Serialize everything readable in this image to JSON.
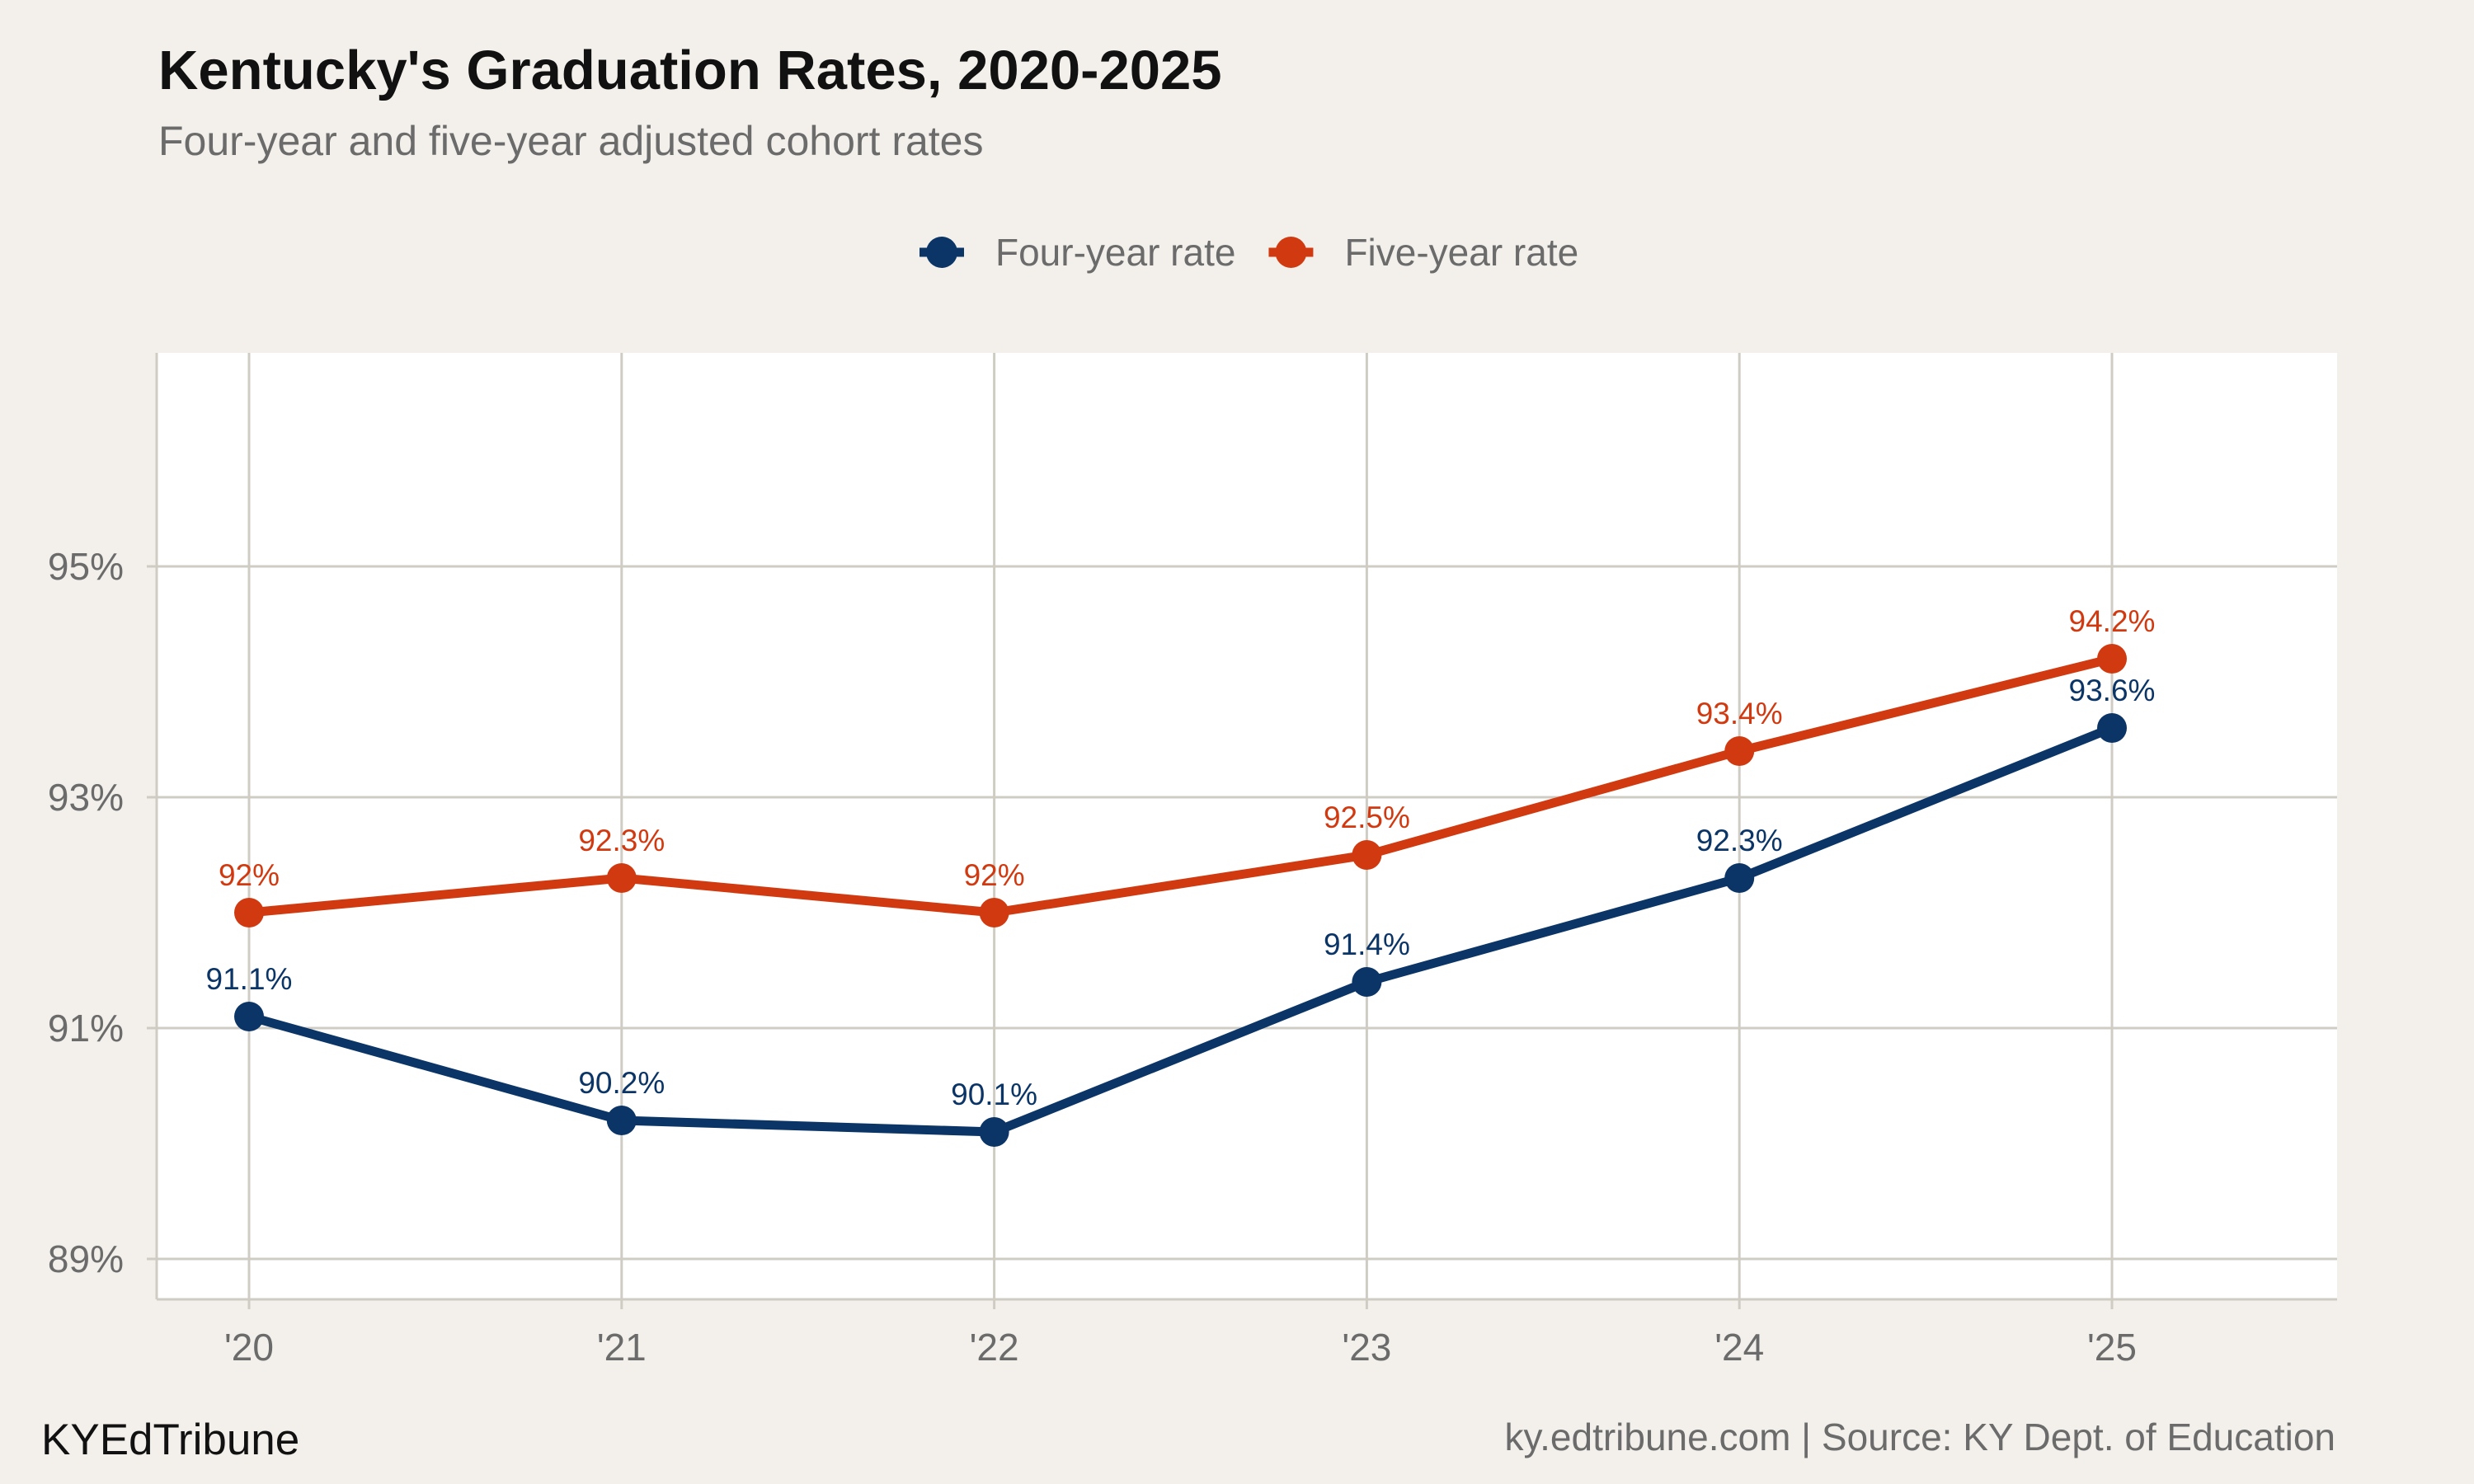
{
  "chart_data": {
    "type": "line",
    "title": "Kentucky's Graduation Rates, 2020-2025",
    "subtitle": "Four-year and five-year adjusted cohort rates",
    "xlabel": "",
    "ylabel": "",
    "categories": [
      "'20",
      "'21",
      "'22",
      "'23",
      "'24",
      "'25"
    ],
    "ylim": [
      88.65,
      96.85
    ],
    "yticks": [
      89,
      91,
      93,
      95
    ],
    "ytick_labels": [
      "89%",
      "91%",
      "93%",
      "95%"
    ],
    "grid": true,
    "legend_position": "top-center",
    "series": [
      {
        "name": "Four-year rate",
        "color": "#0b3566",
        "values": [
          91.1,
          90.2,
          90.1,
          91.4,
          92.3,
          93.6
        ],
        "labels": [
          "91.1%",
          "90.2%",
          "90.1%",
          "91.4%",
          "92.3%",
          "93.6%"
        ]
      },
      {
        "name": "Five-year rate",
        "color": "#d13a10",
        "values": [
          92.0,
          92.3,
          92.0,
          92.5,
          93.4,
          94.2
        ],
        "labels": [
          "92%",
          "92.3%",
          "92%",
          "92.5%",
          "93.4%",
          "94.2%"
        ]
      }
    ]
  },
  "footer": {
    "brand": "KYEdTribune",
    "source": "ky.edtribune.com | Source: KY Dept. of Education"
  },
  "colors": {
    "background": "#f3f0eb",
    "panel": "#ffffff",
    "grid": "#cfccc4",
    "muted_text": "#6b6b6b",
    "title_text": "#111111"
  }
}
